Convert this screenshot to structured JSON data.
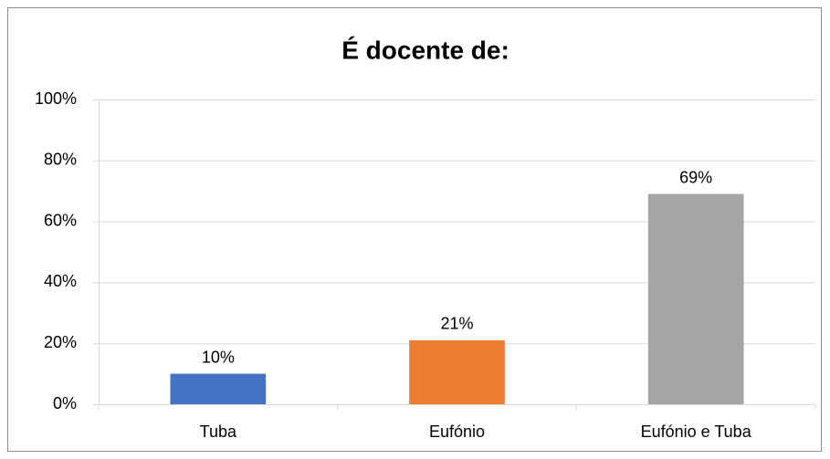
{
  "chart_data": {
    "type": "bar",
    "title": "É docente de:",
    "categories": [
      "Tuba",
      "Eufónio",
      "Eufónio e Tuba"
    ],
    "values": [
      10,
      21,
      69
    ],
    "value_labels": [
      "10%",
      "21%",
      "69%"
    ],
    "colors": [
      "#4472c4",
      "#ed7d31",
      "#a5a5a5"
    ],
    "ylim": [
      0,
      100
    ],
    "yticks": [
      {
        "value": 0,
        "label": "0%"
      },
      {
        "value": 20,
        "label": "20%"
      },
      {
        "value": 40,
        "label": "40%"
      },
      {
        "value": 60,
        "label": "60%"
      },
      {
        "value": 80,
        "label": "80%"
      },
      {
        "value": 100,
        "label": "100%"
      }
    ],
    "grid": true
  }
}
